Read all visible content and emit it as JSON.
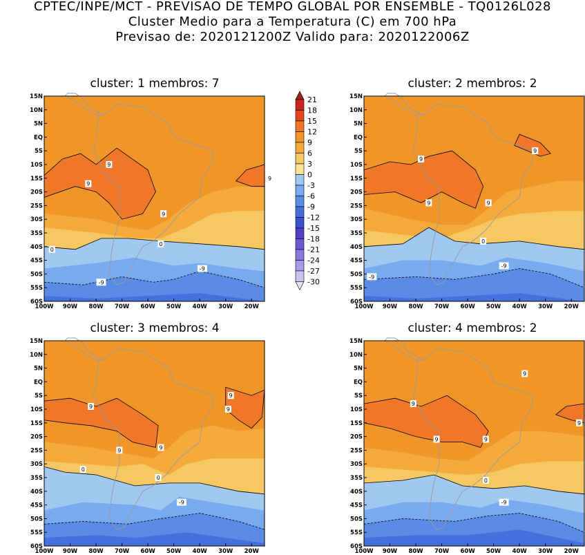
{
  "header": {
    "line1": "CPTEC/INPE/MCT - PREVISAO DE TEMPO GLOBAL POR ENSEMBLE - TQ0126L028",
    "line2": "Cluster Medio para a Temperatura (C) em 700 hPa",
    "line3": "Previsao de: 2020121200Z    Valido para: 2020122006Z"
  },
  "axes": {
    "lat_ticks": [
      "15N",
      "10N",
      "5N",
      "EQ",
      "5S",
      "10S",
      "15S",
      "20S",
      "25S",
      "30S",
      "35S",
      "40S",
      "45S",
      "50S",
      "55S",
      "60S"
    ],
    "lon_ticks": [
      "100W",
      "90W",
      "80W",
      "70W",
      "60W",
      "50W",
      "40W",
      "30W",
      "20W"
    ]
  },
  "panels": [
    {
      "title": "cluster: 1   membros: 7",
      "labels": [
        {
          "text": "9"
        },
        {
          "text": "9"
        },
        {
          "text": "9"
        },
        {
          "text": "9"
        },
        {
          "text": "0"
        },
        {
          "text": "0"
        },
        {
          "text": "-9"
        },
        {
          "text": "-9"
        }
      ]
    },
    {
      "title": "cluster: 2   membros: 2",
      "labels": [
        {
          "text": "9"
        },
        {
          "text": "9"
        },
        {
          "text": "9"
        },
        {
          "text": "9"
        },
        {
          "text": "0"
        },
        {
          "text": "-9"
        },
        {
          "text": "-9"
        }
      ]
    },
    {
      "title": "cluster: 3   membros: 4",
      "labels": [
        {
          "text": "9"
        },
        {
          "text": "9"
        },
        {
          "text": "9"
        },
        {
          "text": "9"
        },
        {
          "text": "9"
        },
        {
          "text": "0"
        },
        {
          "text": "0"
        },
        {
          "text": "-9"
        }
      ]
    },
    {
      "title": "cluster: 4   membros: 2",
      "labels": [
        {
          "text": "9"
        },
        {
          "text": "9"
        },
        {
          "text": "9"
        },
        {
          "text": "9"
        },
        {
          "text": "9"
        },
        {
          "text": "0"
        },
        {
          "text": "-9"
        }
      ]
    }
  ],
  "colorbar": {
    "levels": [
      "21",
      "18",
      "15",
      "12",
      "9",
      "6",
      "3",
      "0",
      "-3",
      "-6",
      "-9",
      "-12",
      "-15",
      "-18",
      "-21",
      "-24",
      "-27",
      "-30"
    ],
    "colors": [
      "#a01e1e",
      "#c8281e",
      "#e6461e",
      "#f07828",
      "#f09628",
      "#f5aa3c",
      "#f5c864",
      "#fae696",
      "#a0c8f0",
      "#78aaf0",
      "#5a8ce6",
      "#466edc",
      "#3c50d2",
      "#5041c8",
      "#6e5ad2",
      "#8c78dc",
      "#aa9be6",
      "#c8c3f0",
      "#e6e1f5"
    ]
  }
}
